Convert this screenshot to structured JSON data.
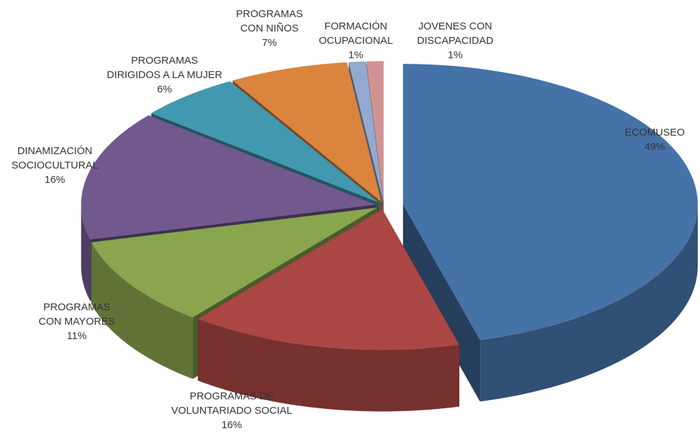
{
  "chart_data": {
    "type": "pie3d",
    "categories": [
      "ECOMUSEO",
      "PROGRAMAS DE\nVOLUNTARIADO SOCIAL",
      "PROGRAMAS\nCON MAYORES",
      "DINAMIZACIÓN\nSOCIOCULTURAL",
      "PROGRAMAS\nDIRIGIDOS A LA MUJER",
      "PROGRAMAS\nCON NIÑOS",
      "FORMACIÓN\nOCUPACIONAL",
      "JOVENES CON\nDISCAPACIDAD"
    ],
    "values": [
      49,
      16,
      11,
      16,
      6,
      7,
      1,
      1
    ],
    "value_labels": [
      "49%",
      "16%",
      "11%",
      "16%",
      "6%",
      "7%",
      "1%",
      "1%"
    ],
    "colors": [
      "#4572a7",
      "#aa4643",
      "#89a54e",
      "#71588f",
      "#4198af",
      "#db843d",
      "#93a9cf",
      "#d19392"
    ]
  }
}
